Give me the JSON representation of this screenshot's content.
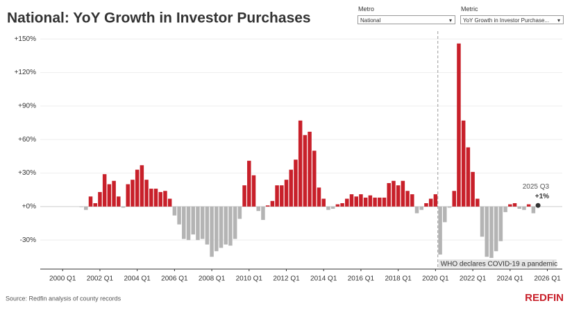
{
  "chart_data": {
    "type": "bar",
    "title": "National: YoY Growth in Investor Purchases",
    "source": "Source: Redfin analysis of county records",
    "brand": "REDFIN",
    "controls": {
      "metro_label": "Metro",
      "metro_value": "National",
      "metric_label": "Metric",
      "metric_value": "YoY Growth in Investor Purchase..."
    },
    "x": [
      2000,
      2000.25,
      2000.5,
      2000.75,
      2001,
      2001.25,
      2001.5,
      2001.75,
      2002,
      2002.25,
      2002.5,
      2002.75,
      2003,
      2003.25,
      2003.5,
      2003.75,
      2004,
      2004.25,
      2004.5,
      2004.75,
      2005,
      2005.25,
      2005.5,
      2005.75,
      2006,
      2006.25,
      2006.5,
      2006.75,
      2007,
      2007.25,
      2007.5,
      2007.75,
      2008,
      2008.25,
      2008.5,
      2008.75,
      2009,
      2009.25,
      2009.5,
      2009.75,
      2010,
      2010.25,
      2010.5,
      2010.75,
      2011,
      2011.25,
      2011.5,
      2011.75,
      2012,
      2012.25,
      2012.5,
      2012.75,
      2013,
      2013.25,
      2013.5,
      2013.75,
      2014,
      2014.25,
      2014.5,
      2014.75,
      2015,
      2015.25,
      2015.5,
      2015.75,
      2016,
      2016.25,
      2016.5,
      2016.75,
      2017,
      2017.25,
      2017.5,
      2017.75,
      2018,
      2018.25,
      2018.5,
      2018.75,
      2019,
      2019.25,
      2019.5,
      2019.75,
      2020,
      2020.25,
      2020.5,
      2020.75,
      2021,
      2021.25,
      2021.5,
      2021.75,
      2022,
      2022.25,
      2022.5,
      2022.75,
      2023,
      2023.25,
      2023.5,
      2023.75,
      2024,
      2024.25,
      2024.5,
      2024.75,
      2025,
      2025.25,
      2025.5
    ],
    "values": [
      0,
      0,
      0,
      0,
      -0.5,
      -3,
      9,
      3,
      13,
      29,
      20,
      23,
      9,
      -1,
      20,
      24,
      33,
      37,
      24,
      16,
      16,
      13,
      14,
      7,
      -8,
      -16,
      -29,
      -30,
      -25,
      -30,
      -29,
      -34,
      -45,
      -40,
      -37,
      -34,
      -35,
      -29,
      -11,
      19,
      41,
      28,
      -4,
      -12,
      1,
      5,
      19,
      19,
      24,
      33,
      42,
      77,
      64,
      67,
      50,
      17,
      7,
      -3,
      -2,
      2,
      3,
      7,
      11,
      9,
      11,
      8,
      10,
      8,
      8,
      8,
      21,
      23,
      19,
      23,
      14,
      11,
      -6,
      -3,
      3,
      7,
      11,
      -43,
      -14,
      -1,
      14,
      146,
      77,
      53,
      31,
      7,
      -27,
      -45,
      -46,
      -40,
      -31,
      -5,
      2,
      3,
      -2,
      -3,
      2,
      -6,
      1
    ],
    "positive_color": "#c8202a",
    "negative_color": "#b4b4b4",
    "last_point_color": "#333333",
    "last_point": {
      "label": "2025 Q3",
      "value_label": "+1%"
    },
    "event": {
      "x": 2020.125,
      "label": "WHO declares COVID-19 a pandemic"
    },
    "xlim": [
      1998.8,
      2026.8
    ],
    "xticks": [
      {
        "value": 2000,
        "label": "2000 Q1"
      },
      {
        "value": 2002,
        "label": "2002 Q1"
      },
      {
        "value": 2004,
        "label": "2004 Q1"
      },
      {
        "value": 2006,
        "label": "2006 Q1"
      },
      {
        "value": 2008,
        "label": "2008 Q1"
      },
      {
        "value": 2010,
        "label": "2010 Q1"
      },
      {
        "value": 2012,
        "label": "2012 Q1"
      },
      {
        "value": 2014,
        "label": "2014 Q1"
      },
      {
        "value": 2016,
        "label": "2016 Q1"
      },
      {
        "value": 2018,
        "label": "2018 Q1"
      },
      {
        "value": 2020,
        "label": "2020 Q1"
      },
      {
        "value": 2022,
        "label": "2022 Q1"
      },
      {
        "value": 2024,
        "label": "2024 Q1"
      },
      {
        "value": 2026,
        "label": "2026 Q1"
      }
    ],
    "ylim": [
      -56,
      157
    ],
    "yticks": [
      {
        "value": -30,
        "label": "-30%"
      },
      {
        "value": 0,
        "label": "+0%"
      },
      {
        "value": 30,
        "label": "+30%"
      },
      {
        "value": 60,
        "label": "+60%"
      },
      {
        "value": 90,
        "label": "+90%"
      },
      {
        "value": 120,
        "label": "+120%"
      },
      {
        "value": 150,
        "label": "+150%"
      }
    ],
    "grid": true
  }
}
